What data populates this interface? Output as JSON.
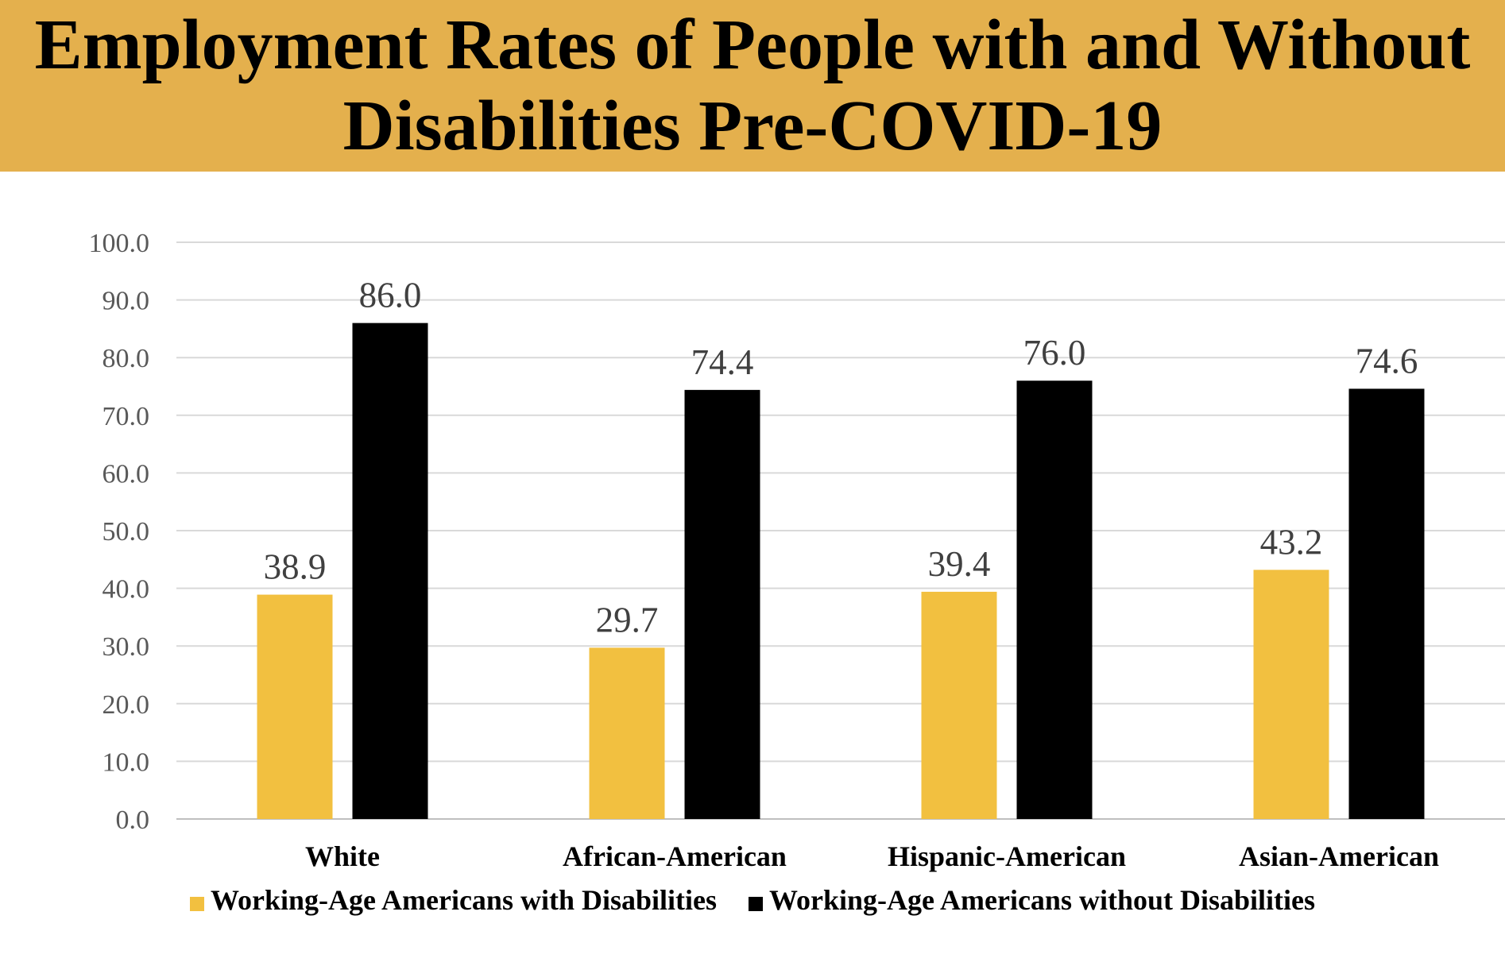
{
  "title": "Employment Rates of People with and Without Disabilities Pre-COVID-19",
  "colors": {
    "banner": "#e4b04d",
    "with_disabilities": "#f2c040",
    "without_disabilities": "#000000",
    "gridline": "#d9d9d9"
  },
  "chart_data": {
    "type": "bar",
    "title": "Employment Rates of People with and Without Disabilities Pre-COVID-19",
    "categories": [
      "White",
      "African-American",
      "Hispanic-American",
      "Asian-American"
    ],
    "series": [
      {
        "name": "Working-Age Americans with Disabilities",
        "color": "#f2c040",
        "values": [
          38.9,
          29.7,
          39.4,
          43.2
        ]
      },
      {
        "name": "Working-Age Americans without Disabilities",
        "color": "#000000",
        "values": [
          86.0,
          74.4,
          76.0,
          74.6
        ]
      }
    ],
    "ylim": [
      0,
      100
    ],
    "yticks": [
      "0.0",
      "10.0",
      "20.0",
      "30.0",
      "40.0",
      "50.0",
      "60.0",
      "70.0",
      "80.0",
      "90.0",
      "100.0"
    ],
    "grid": true,
    "legend": "bottom",
    "xlabel": "",
    "ylabel": ""
  }
}
